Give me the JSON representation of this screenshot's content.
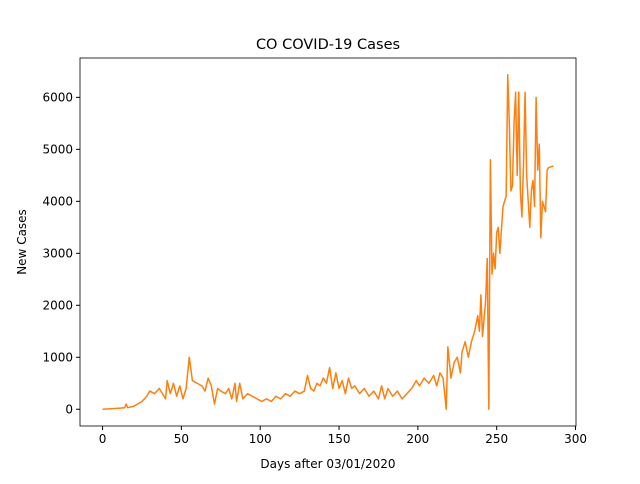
{
  "chart_data": {
    "type": "line",
    "title": "CO COVID-19 Cases",
    "xlabel": "Days after 03/01/2020",
    "ylabel": "New Cases",
    "x": [
      0,
      5,
      10,
      14,
      15,
      16,
      20,
      25,
      28,
      30,
      33,
      36,
      38,
      40,
      41,
      43,
      45,
      47,
      49,
      51,
      53,
      55,
      57,
      60,
      63,
      65,
      67,
      69,
      71,
      73,
      75,
      78,
      80,
      82,
      84,
      85,
      87,
      89,
      92,
      95,
      98,
      101,
      104,
      107,
      110,
      113,
      116,
      119,
      122,
      125,
      128,
      130,
      132,
      134,
      136,
      138,
      140,
      142,
      144,
      146,
      148,
      150,
      152,
      154,
      156,
      158,
      160,
      163,
      166,
      169,
      172,
      175,
      177,
      179,
      181,
      184,
      187,
      190,
      193,
      196,
      199,
      201,
      204,
      207,
      210,
      212,
      214,
      216,
      218,
      219,
      221,
      223,
      225,
      227,
      228,
      230,
      232,
      234,
      236,
      238,
      239,
      240,
      241,
      243,
      244,
      245,
      246,
      247,
      248,
      249,
      250,
      251,
      252,
      254,
      256,
      257,
      258,
      259,
      260,
      261,
      262,
      263,
      264,
      265,
      266,
      267,
      268,
      269,
      270,
      271,
      272,
      273,
      274,
      275,
      276,
      277,
      278,
      279,
      280,
      281,
      282,
      283,
      286
    ],
    "series": [
      {
        "name": "New Cases",
        "color": "#ff7f0e",
        "values": [
          0,
          10,
          20,
          30,
          100,
          30,
          60,
          150,
          250,
          350,
          300,
          400,
          300,
          200,
          550,
          300,
          500,
          250,
          450,
          200,
          400,
          1000,
          550,
          500,
          450,
          350,
          600,
          450,
          100,
          400,
          350,
          300,
          400,
          200,
          500,
          150,
          500,
          200,
          300,
          250,
          200,
          150,
          200,
          150,
          250,
          200,
          300,
          250,
          350,
          300,
          350,
          650,
          400,
          350,
          500,
          450,
          600,
          500,
          800,
          400,
          700,
          400,
          550,
          300,
          600,
          400,
          450,
          300,
          400,
          250,
          350,
          200,
          450,
          200,
          400,
          250,
          350,
          200,
          300,
          400,
          550,
          450,
          600,
          500,
          650,
          450,
          700,
          600,
          0,
          1200,
          600,
          900,
          1000,
          700,
          1100,
          1300,
          1000,
          1300,
          1500,
          1800,
          1500,
          2200,
          1400,
          2100,
          2900,
          0,
          4800,
          2600,
          3000,
          2700,
          3400,
          3500,
          3000,
          3900,
          4100,
          6435,
          5500,
          4200,
          4300,
          5500,
          6100,
          4500,
          6100,
          4200,
          3700,
          4700,
          6100,
          4500,
          4000,
          3500,
          4200,
          4400,
          3900,
          6000,
          4600,
          5100,
          3300,
          4000,
          3900,
          3800,
          4600,
          4650,
          4680
        ]
      }
    ],
    "xlim": [
      -14.3,
      300.3
    ],
    "ylim": [
      -322,
      6757
    ],
    "xticks": [
      0,
      50,
      100,
      150,
      200,
      250,
      300
    ],
    "yticks": [
      0,
      1000,
      2000,
      3000,
      4000,
      5000,
      6000
    ]
  }
}
